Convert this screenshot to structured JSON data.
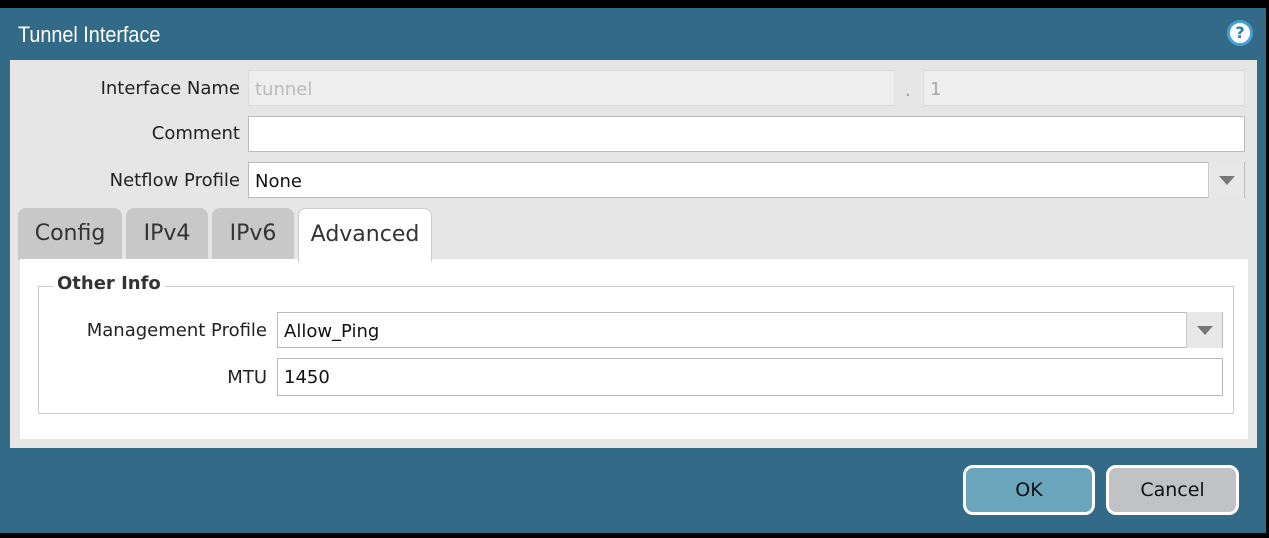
{
  "dialog": {
    "title": "Tunnel Interface",
    "help_icon": "help-icon"
  },
  "form": {
    "interface_name_label": "Interface Name",
    "interface_name_value": "tunnel",
    "separator": ".",
    "interface_suffix": "1",
    "comment_label": "Comment",
    "comment_value": "",
    "netflow_label": "Netflow Profile",
    "netflow_value": "None"
  },
  "tabs": [
    {
      "label": "Config"
    },
    {
      "label": "IPv4"
    },
    {
      "label": "IPv6"
    },
    {
      "label": "Advanced",
      "active": true
    }
  ],
  "advanced": {
    "section_title": "Other Info",
    "mgmt_label": "Management Profile",
    "mgmt_value": "Allow_Ping",
    "mtu_label": "MTU",
    "mtu_value": "1450"
  },
  "buttons": {
    "ok": "OK",
    "cancel": "Cancel"
  },
  "colors": {
    "header": "#336a87",
    "ok": "#6aa5bb",
    "cancel": "#c0c2c6"
  }
}
